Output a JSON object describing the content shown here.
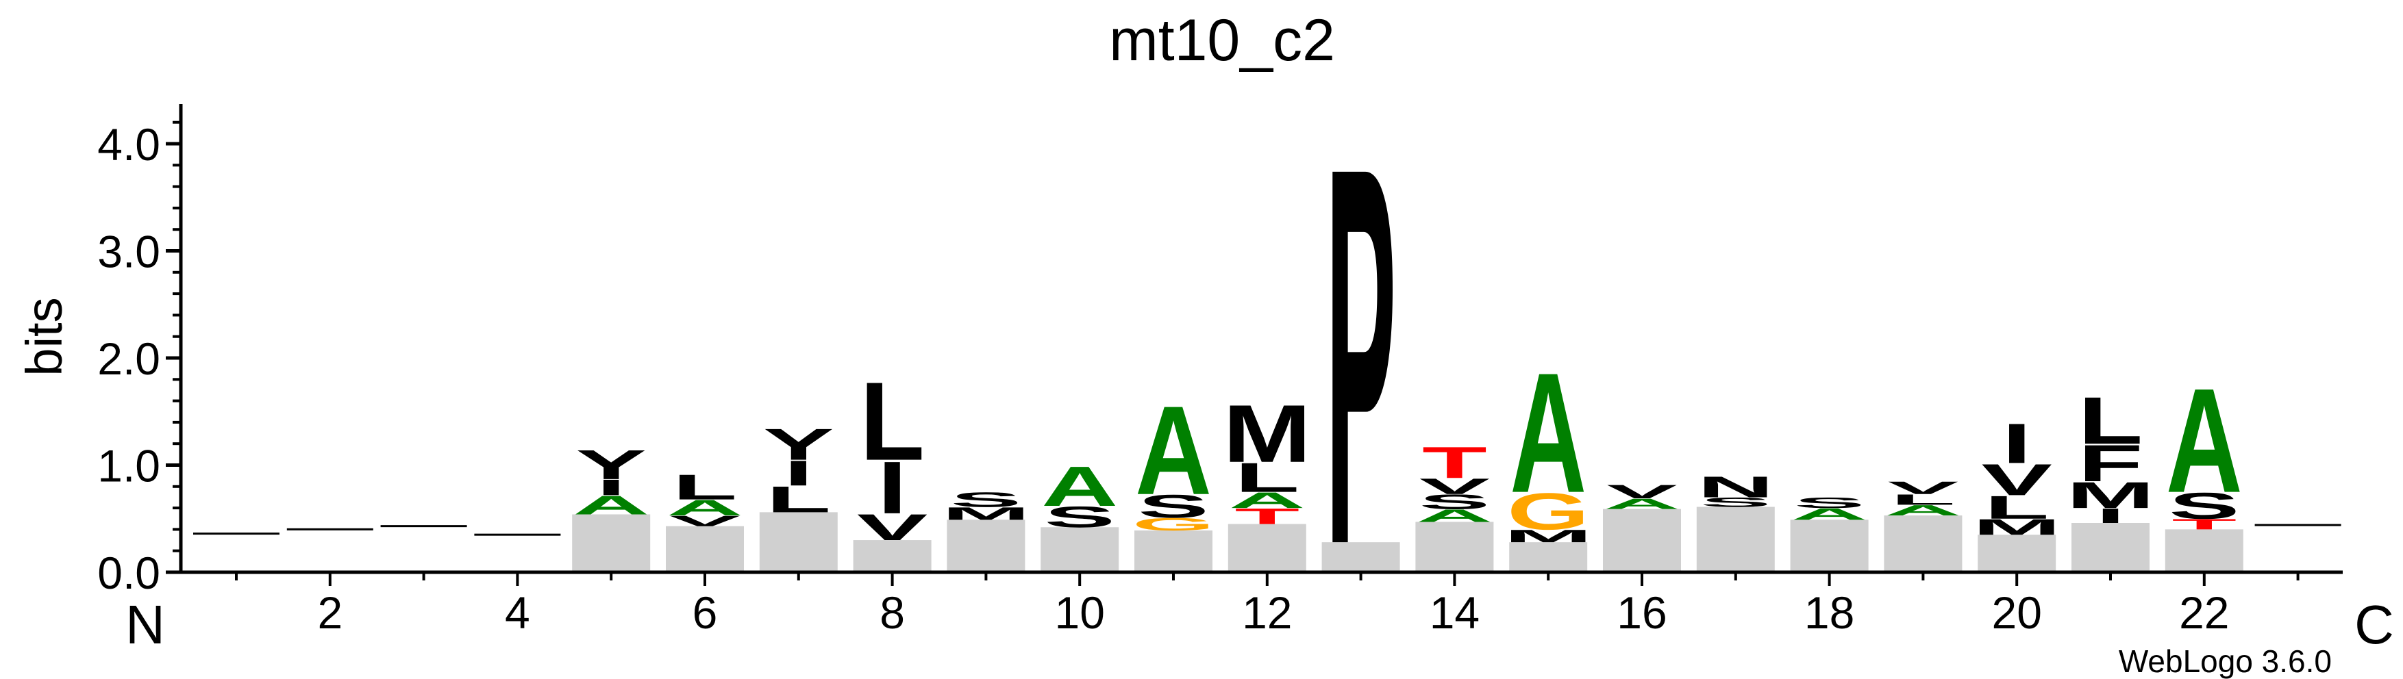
{
  "chart_data": {
    "type": "bar",
    "subtype": "sequence-logo",
    "title": "mt10_c2",
    "ylabel": "bits",
    "xlabel": "",
    "ylim": [
      0,
      4.3
    ],
    "yticks": [
      "0.0",
      "1.0",
      "2.0",
      "3.0",
      "4.0"
    ],
    "xticks": [
      2,
      4,
      6,
      8,
      10,
      12,
      14,
      16,
      18,
      20,
      22
    ],
    "n_terminus_label": "N",
    "c_terminus_label": "C",
    "footer": "WebLogo 3.6.0",
    "grid": false,
    "colors": {
      "black": "#000000",
      "green": "#008000",
      "red": "#ff0000",
      "orange": "#ffa500",
      "blue": "#0000ff"
    },
    "positions": [
      {
        "pos": 1,
        "total": 0.37,
        "letters": [
          {
            "aa": "·",
            "h": 0.37,
            "color": "black"
          }
        ]
      },
      {
        "pos": 2,
        "total": 0.41,
        "letters": [
          {
            "aa": "·",
            "h": 0.41,
            "color": "black"
          }
        ]
      },
      {
        "pos": 3,
        "total": 0.44,
        "letters": [
          {
            "aa": "·",
            "h": 0.44,
            "color": "black"
          }
        ]
      },
      {
        "pos": 4,
        "total": 0.36,
        "letters": [
          {
            "aa": "·",
            "h": 0.36,
            "color": "black"
          }
        ]
      },
      {
        "pos": 5,
        "total": 1.15,
        "letters": [
          {
            "aa": "A",
            "h": 0.18,
            "color": "green"
          },
          {
            "aa": "I",
            "h": 0.15,
            "color": "black"
          },
          {
            "aa": "Y",
            "h": 0.28,
            "color": "black"
          }
        ]
      },
      {
        "pos": 6,
        "total": 0.92,
        "letters": [
          {
            "aa": "V",
            "h": 0.1,
            "color": "black"
          },
          {
            "aa": "A",
            "h": 0.15,
            "color": "green"
          },
          {
            "aa": "L",
            "h": 0.24,
            "color": "black"
          }
        ]
      },
      {
        "pos": 7,
        "total": 1.35,
        "letters": [
          {
            "aa": "L",
            "h": 0.25,
            "color": "black"
          },
          {
            "aa": "I",
            "h": 0.24,
            "color": "black"
          },
          {
            "aa": "Y",
            "h": 0.3,
            "color": "black"
          }
        ]
      },
      {
        "pos": 8,
        "total": 1.8,
        "letters": [
          {
            "aa": "V",
            "h": 0.25,
            "color": "black"
          },
          {
            "aa": "I",
            "h": 0.5,
            "color": "black"
          },
          {
            "aa": "L",
            "h": 0.75,
            "color": "black"
          }
        ]
      },
      {
        "pos": 9,
        "total": 0.75,
        "letters": [
          {
            "aa": "M",
            "h": 0.12,
            "color": "black"
          },
          {
            "aa": "S",
            "h": 0.14,
            "color": "black"
          }
        ]
      },
      {
        "pos": 10,
        "total": 1.0,
        "letters": [
          {
            "aa": "S",
            "h": 0.2,
            "color": "black"
          },
          {
            "aa": "A",
            "h": 0.38,
            "color": "green"
          }
        ]
      },
      {
        "pos": 11,
        "total": 1.58,
        "letters": [
          {
            "aa": "G",
            "h": 0.12,
            "color": "orange"
          },
          {
            "aa": "S",
            "h": 0.22,
            "color": "black"
          },
          {
            "aa": "A",
            "h": 0.85,
            "color": "green"
          }
        ]
      },
      {
        "pos": 12,
        "total": 1.58,
        "letters": [
          {
            "aa": "T",
            "h": 0.15,
            "color": "red"
          },
          {
            "aa": "A",
            "h": 0.15,
            "color": "green"
          },
          {
            "aa": "L",
            "h": 0.28,
            "color": "black"
          },
          {
            "aa": "M",
            "h": 0.55,
            "color": "black"
          }
        ]
      },
      {
        "pos": 13,
        "total": 3.9,
        "letters": [
          {
            "aa": "P",
            "h": 3.62,
            "color": "black"
          }
        ]
      },
      {
        "pos": 14,
        "total": 1.18,
        "letters": [
          {
            "aa": "A",
            "h": 0.12,
            "color": "green"
          },
          {
            "aa": "S",
            "h": 0.14,
            "color": "black"
          },
          {
            "aa": "V",
            "h": 0.15,
            "color": "black"
          },
          {
            "aa": "T",
            "h": 0.3,
            "color": "red"
          }
        ]
      },
      {
        "pos": 15,
        "total": 1.9,
        "letters": [
          {
            "aa": "M",
            "h": 0.12,
            "color": "black"
          },
          {
            "aa": "G",
            "h": 0.35,
            "color": "orange"
          },
          {
            "aa": "A",
            "h": 1.15,
            "color": "green"
          }
        ]
      },
      {
        "pos": 16,
        "total": 0.82,
        "letters": [
          {
            "aa": "A",
            "h": 0.1,
            "color": "green"
          },
          {
            "aa": "V",
            "h": 0.13,
            "color": "black"
          }
        ]
      },
      {
        "pos": 17,
        "total": 0.9,
        "letters": [
          {
            "aa": "S",
            "h": 0.09,
            "color": "black"
          },
          {
            "aa": "N",
            "h": 0.2,
            "color": "black"
          }
        ]
      },
      {
        "pos": 18,
        "total": 0.7,
        "letters": [
          {
            "aa": "A",
            "h": 0.11,
            "color": "green"
          },
          {
            "aa": "S",
            "h": 0.1,
            "color": "black"
          }
        ]
      },
      {
        "pos": 19,
        "total": 0.85,
        "letters": [
          {
            "aa": "A",
            "h": 0.1,
            "color": "green"
          },
          {
            "aa": "L",
            "h": 0.1,
            "color": "black"
          },
          {
            "aa": "V",
            "h": 0.12,
            "color": "black"
          }
        ]
      },
      {
        "pos": 20,
        "total": 1.4,
        "letters": [
          {
            "aa": "M",
            "h": 0.15,
            "color": "black"
          },
          {
            "aa": "L",
            "h": 0.22,
            "color": "black"
          },
          {
            "aa": "V",
            "h": 0.3,
            "color": "black"
          },
          {
            "aa": "I",
            "h": 0.38,
            "color": "black"
          }
        ]
      },
      {
        "pos": 21,
        "total": 1.65,
        "letters": [
          {
            "aa": "I",
            "h": 0.14,
            "color": "black"
          },
          {
            "aa": "M",
            "h": 0.25,
            "color": "black"
          },
          {
            "aa": "F",
            "h": 0.35,
            "color": "black"
          },
          {
            "aa": "L",
            "h": 0.45,
            "color": "black"
          }
        ]
      },
      {
        "pos": 22,
        "total": 1.75,
        "letters": [
          {
            "aa": "T",
            "h": 0.1,
            "color": "red"
          },
          {
            "aa": "S",
            "h": 0.25,
            "color": "black"
          },
          {
            "aa": "A",
            "h": 1.0,
            "color": "green"
          }
        ]
      },
      {
        "pos": 23,
        "total": 0.45,
        "letters": [
          {
            "aa": "·",
            "h": 0.45,
            "color": "black"
          }
        ]
      }
    ]
  }
}
